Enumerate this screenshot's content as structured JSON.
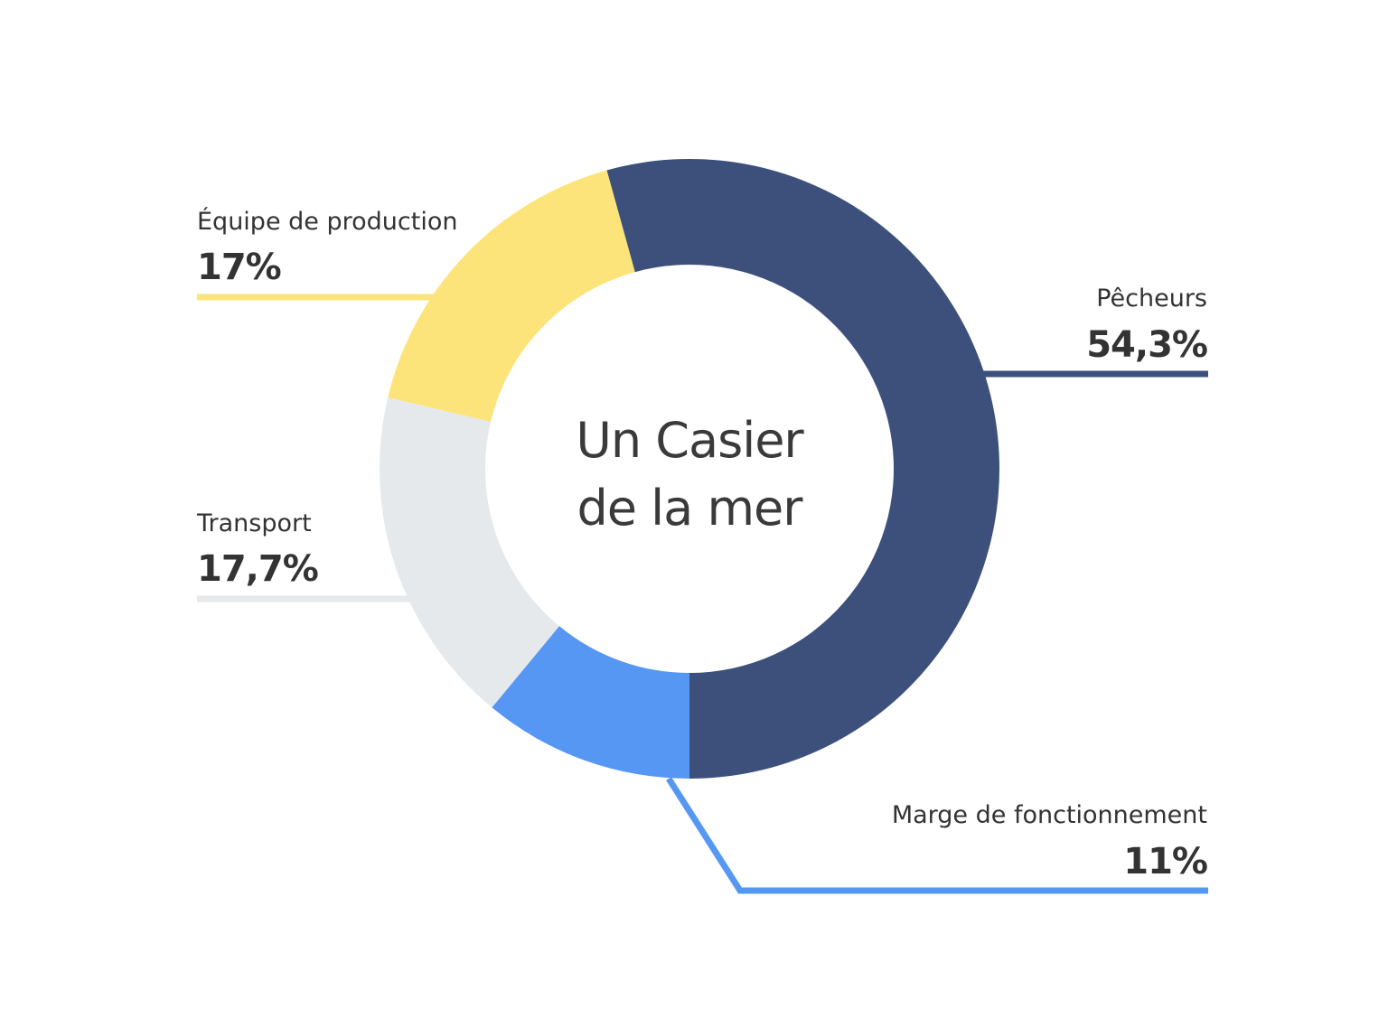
{
  "chart_data": {
    "type": "pie",
    "title": "Un Casier de la mer",
    "title_lines": [
      "Un Casier",
      "de la mer"
    ],
    "donut": true,
    "slices": [
      {
        "label": "Pêcheurs",
        "value_label": "54,3%",
        "value": 54.3,
        "color": "#3d507c"
      },
      {
        "label": "Marge de fonctionnement",
        "value_label": "11%",
        "value": 11,
        "color": "#5797f4"
      },
      {
        "label": "Transport",
        "value_label": "17,7%",
        "value": 17.7,
        "color": "#e6e9ec"
      },
      {
        "label": "Équipe de production",
        "value_label": "17%",
        "value": 17,
        "color": "#fde47a"
      }
    ]
  }
}
